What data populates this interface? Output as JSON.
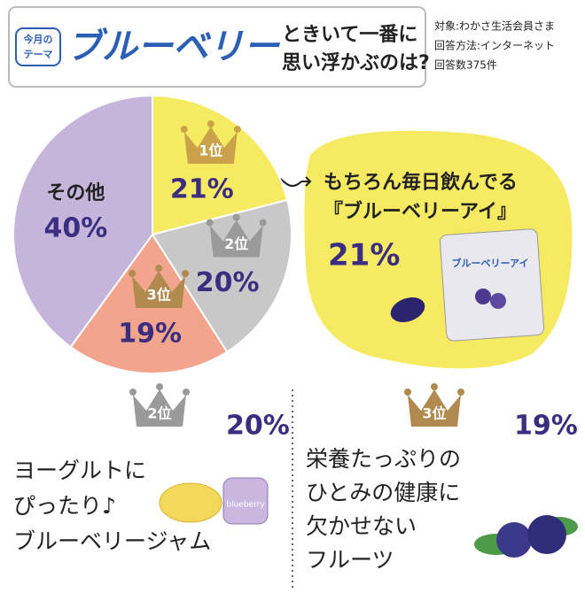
{
  "header": {
    "tag": [
      "今月の",
      "テーマ"
    ],
    "theme": "ブルーベリー",
    "question": [
      "ときいて一番に",
      "思い浮かぶのは?"
    ],
    "meta": [
      "対象:わかさ生活会員さま",
      "回答方法:インターネット",
      "回答数375件"
    ]
  },
  "chart_data": {
    "type": "pie",
    "categories": [
      "1位",
      "2位",
      "3位",
      "その他"
    ],
    "values": [
      21,
      20,
      19,
      40
    ],
    "value_labels": [
      "21%",
      "20%",
      "19%",
      "40%"
    ],
    "colors": [
      "#f7ea63",
      "#c8c8c8",
      "#f2a58c",
      "#c6b5db"
    ]
  },
  "callouts": [
    {
      "lines": [
        "もちろん毎日飲んでる",
        "『ブルーベリーアイ』"
      ],
      "product": "ブルーベリーアイ"
    },
    {
      "lines": [
        "ヨーグルトに",
        "ぴったり♪",
        "ブルーベリージャム"
      ],
      "product": "blueberry"
    },
    {
      "lines": [
        "栄養たっぷりの",
        "ひとみの健康に",
        "欠かせない",
        "フルーツ"
      ]
    }
  ]
}
